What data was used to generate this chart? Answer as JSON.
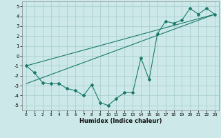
{
  "xlabel": "Humidex (Indice chaleur)",
  "ylabel": "",
  "bg_color": "#cce8e8",
  "grid_color": "#aacfcf",
  "line_color": "#1a7a6a",
  "xlim": [
    -0.5,
    23.5
  ],
  "ylim": [
    -5.5,
    5.5
  ],
  "xticks": [
    0,
    1,
    2,
    3,
    4,
    5,
    6,
    7,
    8,
    9,
    10,
    11,
    12,
    13,
    14,
    15,
    16,
    17,
    18,
    19,
    20,
    21,
    22,
    23
  ],
  "yticks": [
    -5,
    -4,
    -3,
    -2,
    -1,
    0,
    1,
    2,
    3,
    4,
    5
  ],
  "data_x": [
    0,
    1,
    2,
    3,
    4,
    5,
    6,
    7,
    8,
    9,
    10,
    11,
    12,
    13,
    14,
    15,
    16,
    17,
    18,
    19,
    20,
    21,
    22,
    23
  ],
  "data_y": [
    -1.0,
    -1.7,
    -2.7,
    -2.8,
    -2.8,
    -3.3,
    -3.5,
    -4.0,
    -2.9,
    -4.7,
    -5.0,
    -4.3,
    -3.7,
    -3.7,
    -0.2,
    -2.4,
    2.2,
    3.5,
    3.3,
    3.6,
    4.8,
    4.2,
    4.8,
    4.2
  ],
  "trend1_x": [
    0,
    23
  ],
  "trend1_y": [
    -2.8,
    4.2
  ],
  "trend2_x": [
    0,
    23
  ],
  "trend2_y": [
    -1.0,
    4.2
  ]
}
